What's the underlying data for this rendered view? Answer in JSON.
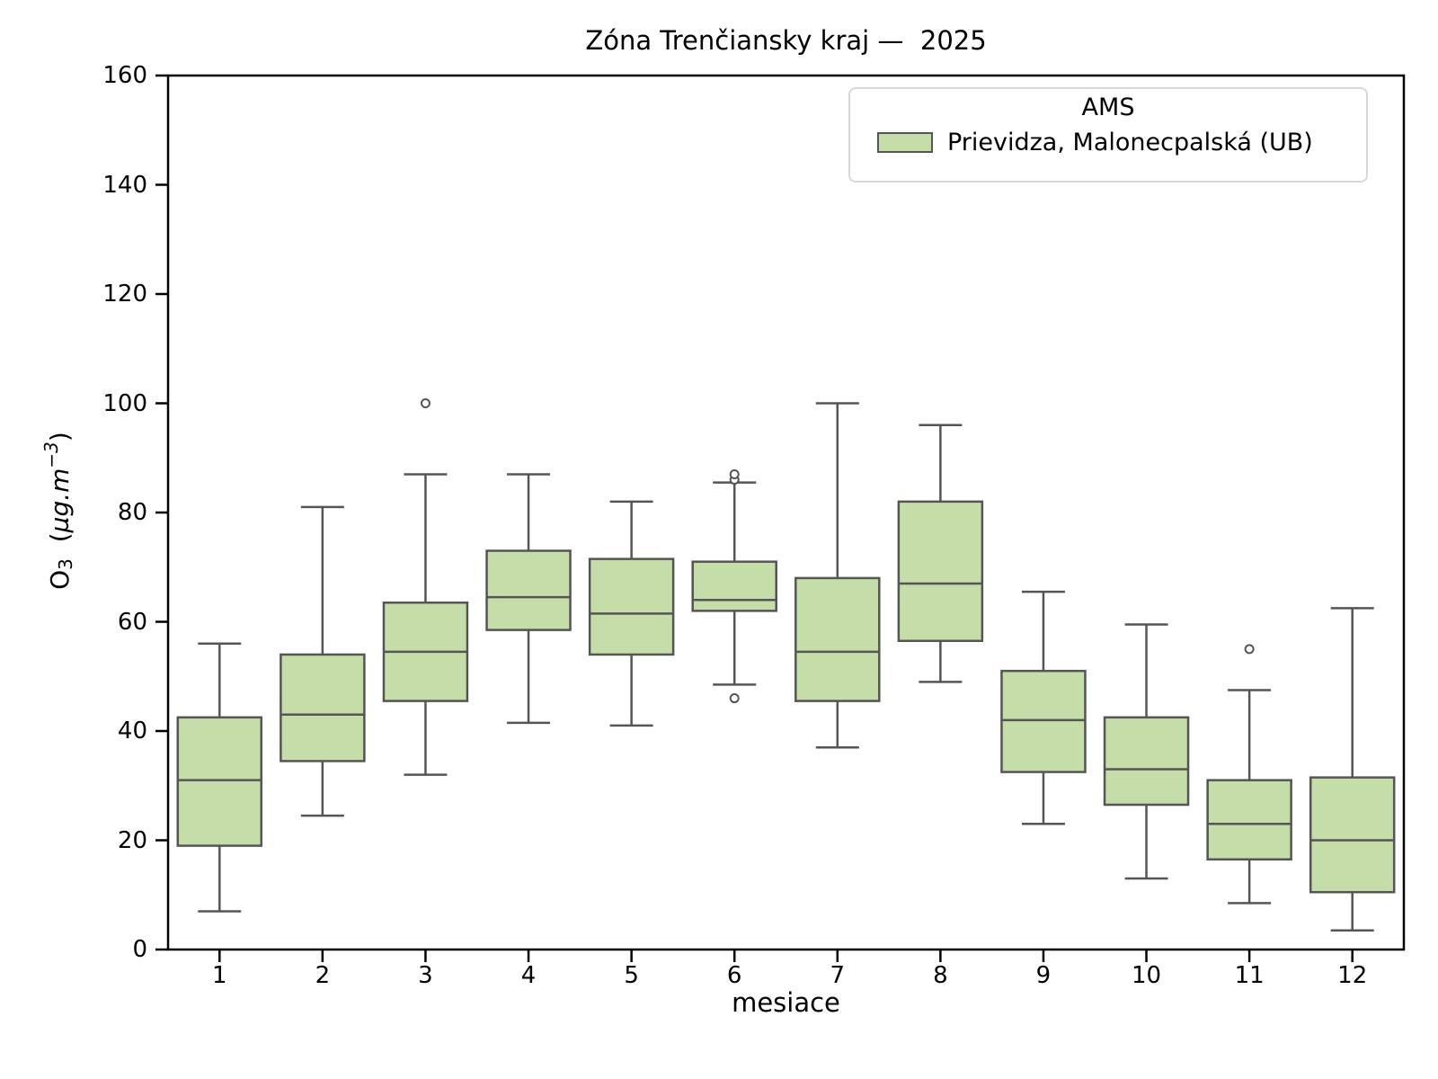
{
  "chart_data": {
    "type": "box",
    "title": "Zóna Trenčiansky kraj —  2025",
    "xlabel": "mesiace",
    "ylabel": "O3 (µg.m-3)",
    "ylabel_parts": {
      "base": "O",
      "subscript": "3",
      "pre_unit": "  (",
      "unit": "µg.m",
      "superscript": "−3",
      "post_unit": ")"
    },
    "categories": [
      "1",
      "2",
      "3",
      "4",
      "5",
      "6",
      "7",
      "8",
      "9",
      "10",
      "11",
      "12"
    ],
    "yticks": [
      "0",
      "20",
      "40",
      "60",
      "80",
      "100",
      "120",
      "140",
      "160"
    ],
    "ylim": [
      0,
      160
    ],
    "grid": false,
    "legend": {
      "title": "AMS",
      "position": "upper right",
      "entries": [
        {
          "label": "Prievidza, Malonecpalská (UB)",
          "color": "#c5dda8"
        }
      ]
    },
    "series": [
      {
        "name": "Prievidza, Malonecpalská (UB)",
        "boxes": [
          {
            "month": "1",
            "whisker_low": 7,
            "q1": 19,
            "median": 31,
            "q3": 42.5,
            "whisker_high": 56,
            "outliers": []
          },
          {
            "month": "2",
            "whisker_low": 24.5,
            "q1": 34.5,
            "median": 43,
            "q3": 54,
            "whisker_high": 81,
            "outliers": []
          },
          {
            "month": "3",
            "whisker_low": 32,
            "q1": 45.5,
            "median": 54.5,
            "q3": 63.5,
            "whisker_high": 87,
            "outliers": [
              100
            ]
          },
          {
            "month": "4",
            "whisker_low": 41.5,
            "q1": 58.5,
            "median": 64.5,
            "q3": 73,
            "whisker_high": 87,
            "outliers": []
          },
          {
            "month": "5",
            "whisker_low": 41,
            "q1": 54,
            "median": 61.5,
            "q3": 71.5,
            "whisker_high": 82,
            "outliers": []
          },
          {
            "month": "6",
            "whisker_low": 48.5,
            "q1": 62,
            "median": 64,
            "q3": 71,
            "whisker_high": 85.5,
            "outliers": [
              46,
              86,
              87
            ]
          },
          {
            "month": "7",
            "whisker_low": 37,
            "q1": 45.5,
            "median": 54.5,
            "q3": 68,
            "whisker_high": 100,
            "outliers": []
          },
          {
            "month": "8",
            "whisker_low": 49,
            "q1": 56.5,
            "median": 67,
            "q3": 82,
            "whisker_high": 96,
            "outliers": []
          },
          {
            "month": "9",
            "whisker_low": 23,
            "q1": 32.5,
            "median": 42,
            "q3": 51,
            "whisker_high": 65.5,
            "outliers": []
          },
          {
            "month": "10",
            "whisker_low": 13,
            "q1": 26.5,
            "median": 33,
            "q3": 42.5,
            "whisker_high": 59.5,
            "outliers": []
          },
          {
            "month": "11",
            "whisker_low": 8.5,
            "q1": 16.5,
            "median": 23,
            "q3": 31,
            "whisker_high": 47.5,
            "outliers": [
              55
            ]
          },
          {
            "month": "12",
            "whisker_low": 3.5,
            "q1": 10.5,
            "median": 20,
            "q3": 31.5,
            "whisker_high": 62.5,
            "outliers": []
          }
        ]
      }
    ],
    "colors": {
      "box_fill": "#c5dda8",
      "box_edge": "#555555",
      "whisker": "#555555",
      "median": "#555555",
      "outlier_edge": "#555555",
      "spine": "#000000",
      "text": "#000000",
      "legend_border": "#d8d8d8"
    }
  }
}
